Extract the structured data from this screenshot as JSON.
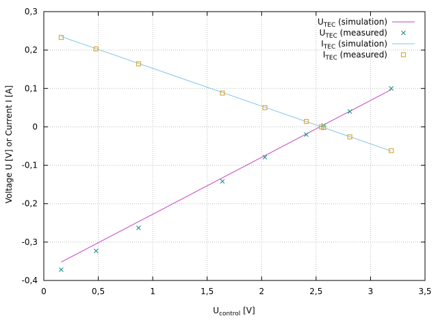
{
  "chart_data": {
    "type": "line",
    "xlabel": {
      "main": "U",
      "sub": "control",
      "unit": " [V]"
    },
    "ylabel": "Voltage U [V] or Current I [A]",
    "xlim": [
      0,
      3.5
    ],
    "ylim": [
      -0.4,
      0.3
    ],
    "x_ticks": [
      0,
      0.5,
      1,
      1.5,
      2,
      2.5,
      3,
      3.5
    ],
    "x_tick_labels": [
      "0",
      "0,5",
      "1",
      "1,5",
      "2",
      "2,5",
      "3",
      "3,5"
    ],
    "y_ticks": [
      -0.4,
      -0.3,
      -0.2,
      -0.1,
      0,
      0.1,
      0.2,
      0.3
    ],
    "y_tick_labels": [
      "-0,4",
      "-0,3",
      "-0,2",
      "-0,1",
      "0",
      "0,1",
      "0,2",
      "0,3"
    ],
    "grid": true,
    "legend_position": "top-right",
    "series": [
      {
        "name": "U_TEC (simulation)",
        "label_main": "U",
        "label_sub": "TEC",
        "label_rest": " (simulation)",
        "kind": "line",
        "color": "#c23fc6",
        "x": [
          0.16,
          3.19
        ],
        "y": [
          -0.352,
          0.097
        ]
      },
      {
        "name": "U_TEC (measured)",
        "label_main": "U",
        "label_sub": "TEC",
        "label_rest": " (measured)",
        "kind": "scatter",
        "marker": "x",
        "color": "#0c8c80",
        "x": [
          0.16,
          0.48,
          0.87,
          1.64,
          2.03,
          2.41,
          2.57,
          2.81,
          3.19
        ],
        "y": [
          -0.372,
          -0.323,
          -0.263,
          -0.142,
          -0.079,
          -0.02,
          0.004,
          0.04,
          0.1
        ]
      },
      {
        "name": "I_TEC (simulation)",
        "label_main": "I",
        "label_sub": "TEC",
        "label_rest": " (simulation)",
        "kind": "line",
        "color": "#7fc4e8",
        "x": [
          0.16,
          3.19
        ],
        "y": [
          0.235,
          -0.063
        ]
      },
      {
        "name": "I_TEC (measured)",
        "label_main": "I",
        "label_sub": "TEC",
        "label_rest": " (measured)",
        "kind": "scatter",
        "marker": "square",
        "color": "#d9a93a",
        "x": [
          0.16,
          0.48,
          0.87,
          1.64,
          2.03,
          2.41,
          2.55,
          2.57,
          2.81,
          3.19
        ],
        "y": [
          0.233,
          0.203,
          0.164,
          0.088,
          0.05,
          0.014,
          0.0,
          -0.002,
          -0.026,
          -0.062
        ]
      }
    ]
  }
}
